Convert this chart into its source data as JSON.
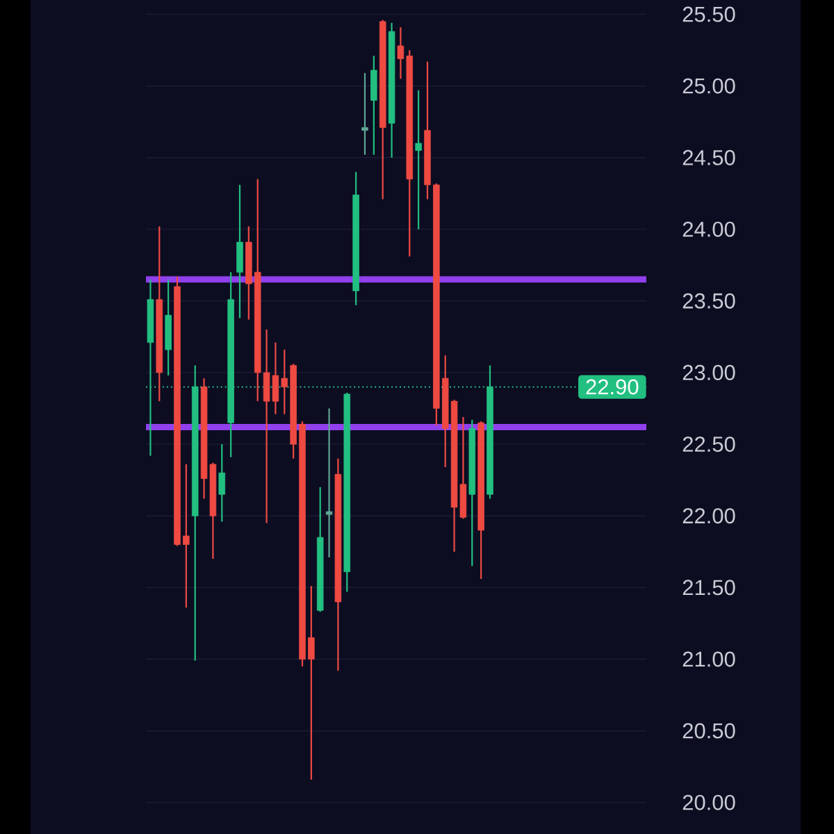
{
  "chart_data": {
    "type": "candlestick",
    "categories": [
      null,
      null,
      null,
      null,
      null,
      null,
      null,
      null,
      null,
      null,
      null,
      null,
      null,
      null,
      null,
      null,
      null,
      null,
      null,
      null,
      null,
      null,
      null,
      null,
      null,
      null,
      null,
      null,
      null,
      null,
      null,
      null,
      null,
      null,
      null,
      null,
      null,
      null,
      null,
      null,
      null,
      null,
      null,
      null,
      null,
      null,
      null,
      null,
      null,
      null,
      null,
      null,
      null,
      null,
      null,
      null
    ],
    "ohlc": [
      [
        23.21,
        23.65,
        22.42,
        23.51
      ],
      [
        23.51,
        24.02,
        22.8,
        23.0
      ],
      [
        23.16,
        23.65,
        22.98,
        23.4
      ],
      [
        23.6,
        23.67,
        21.79,
        21.8
      ],
      [
        21.86,
        22.36,
        21.36,
        21.8
      ],
      [
        22.0,
        23.05,
        20.99,
        22.9
      ],
      [
        22.9,
        22.96,
        22.12,
        22.26
      ],
      [
        22.36,
        22.37,
        21.7,
        22.0
      ],
      [
        22.15,
        22.5,
        21.96,
        22.3
      ],
      [
        22.65,
        23.7,
        22.41,
        23.51
      ],
      [
        23.7,
        24.31,
        23.38,
        23.91
      ],
      [
        23.91,
        24.02,
        23.37,
        23.62
      ],
      [
        23.7,
        24.35,
        22.8,
        23.0
      ],
      [
        23.0,
        23.3,
        21.95,
        22.8
      ],
      [
        22.98,
        23.21,
        22.71,
        22.8
      ],
      [
        22.96,
        23.16,
        22.71,
        22.9
      ],
      [
        23.05,
        23.06,
        22.4,
        22.5
      ],
      [
        22.64,
        22.66,
        20.95,
        21.0
      ],
      [
        21.15,
        21.51,
        20.16,
        21.0
      ],
      [
        21.34,
        22.2,
        21.33,
        21.85
      ],
      [
        22.01,
        22.75,
        21.71,
        22.03
      ],
      [
        22.29,
        22.4,
        20.92,
        21.4
      ],
      [
        21.61,
        22.86,
        21.47,
        22.85
      ],
      [
        23.57,
        24.4,
        23.47,
        24.24
      ],
      [
        24.69,
        25.09,
        24.52,
        24.71
      ],
      [
        24.9,
        25.21,
        24.52,
        25.11
      ],
      [
        25.45,
        25.46,
        24.21,
        24.71
      ],
      [
        24.74,
        25.44,
        24.5,
        25.38
      ],
      [
        25.28,
        25.41,
        25.05,
        25.19
      ],
      [
        25.21,
        25.25,
        23.81,
        24.35
      ],
      [
        24.55,
        24.97,
        24.0,
        24.6
      ],
      [
        24.69,
        25.17,
        24.21,
        24.31
      ],
      [
        24.31,
        24.32,
        22.63,
        22.75
      ],
      [
        22.96,
        23.12,
        22.34,
        22.61
      ],
      [
        22.8,
        22.81,
        21.75,
        22.06
      ],
      [
        22.22,
        22.69,
        21.98,
        21.99
      ],
      [
        22.15,
        22.67,
        21.65,
        22.61
      ],
      [
        22.65,
        22.66,
        21.56,
        21.9
      ],
      [
        22.15,
        23.05,
        22.12,
        22.9
      ],
      null,
      null,
      null,
      null,
      null,
      null,
      null,
      null,
      null,
      null,
      null,
      null,
      null,
      null,
      null,
      null,
      null
    ],
    "colors": [
      "#22bf80",
      "#ee4a42",
      "#22bf80",
      "#ee4a42",
      "#ee4a42",
      "#22bf80",
      "#ee4a42",
      "#ee4a42",
      "#22bf80",
      "#22bf80",
      "#22bf80",
      "#ee4a42",
      "#ee4a42",
      "#ee4a42",
      "#ee4a42",
      "#ee4a42",
      "#ee4a42",
      "#ee4a42",
      "#ee4a42",
      "#22bf80",
      "#5fa593",
      "#ee4a42",
      "#22bf80",
      "#22bf80",
      "#5fa593",
      "#22bf80",
      "#ee4a42",
      "#22bf80",
      "#ee4a42",
      "#ee4a42",
      "#22bf80",
      "#ee4a42",
      "#ee4a42",
      "#ee4a42",
      "#ee4a42",
      "#ee4a42",
      "#22bf80",
      "#ee4a42",
      "#22bf80",
      null,
      null,
      null,
      null,
      null,
      null,
      null,
      null,
      null,
      null,
      null,
      null,
      null,
      null,
      null,
      null,
      null
    ],
    "ylim": [
      19.78,
      25.6
    ],
    "yticks": [
      {
        "value": 20,
        "label": "20.00"
      },
      {
        "value": 20.5,
        "label": "20.50"
      },
      {
        "value": 21,
        "label": "21.00"
      },
      {
        "value": 21.5,
        "label": "21.50"
      },
      {
        "value": 22,
        "label": "22.00"
      },
      {
        "value": 22.5,
        "label": "22.50"
      },
      {
        "value": 23,
        "label": "23.00"
      },
      {
        "value": 23.5,
        "label": "23.50"
      },
      {
        "value": 24,
        "label": "24.00"
      },
      {
        "value": 24.5,
        "label": "24.50"
      },
      {
        "value": 25,
        "label": "25.00"
      },
      {
        "value": 25.5,
        "label": "25.50"
      }
    ],
    "grid": "y",
    "ref_lines": [
      {
        "axis": "y",
        "value": 23.65,
        "color": "#9140ee",
        "line_style": "solid"
      },
      {
        "axis": "y",
        "value": 22.62,
        "color": "#9140ee",
        "line_style": "solid"
      },
      {
        "axis": "y",
        "value": 22.9,
        "label": "22.90",
        "color": "#22bf80",
        "line_style": "dotted"
      }
    ]
  }
}
